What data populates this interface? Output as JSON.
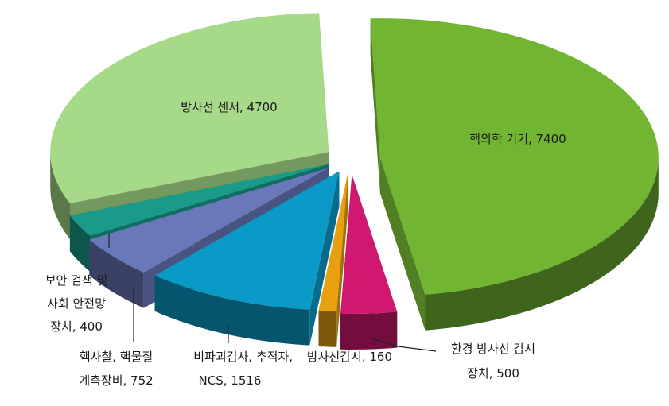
{
  "chart_data": {
    "type": "pie",
    "style": "3d-exploded",
    "legend": "none",
    "slices": [
      {
        "name": "핵의학 기기",
        "value": 7400,
        "color": "#72b533",
        "label_lines": [
          "핵의학 기기, 7400"
        ]
      },
      {
        "name": "환경 방사선 감시 장치",
        "value": 500,
        "color": "#d01870",
        "label_lines": [
          "환경 방사선 감시",
          "장치, 500"
        ]
      },
      {
        "name": "방사선감시",
        "value": 160,
        "color": "#e8a010",
        "label_lines": [
          "방사선감시, 160"
        ]
      },
      {
        "name": "비파괴검사, 추적자, NCS",
        "value": 1516,
        "color": "#0a9ac8",
        "label_lines": [
          "비파괴검사, 추적자,",
          "NCS, 1516"
        ]
      },
      {
        "name": "핵사찰, 핵물질 계측장비",
        "value": 752,
        "color": "#6878b8",
        "label_lines": [
          "핵사찰, 핵물질",
          "계측장비, 752"
        ]
      },
      {
        "name": "보안 검색 및 사회 안전망 장치",
        "value": 400,
        "color": "#1a9a88",
        "label_lines": [
          "보안 검색 및",
          "사회 안전망",
          "장치, 400"
        ]
      },
      {
        "name": "방사선 센서",
        "value": 4700,
        "color": "#a6da88",
        "label_lines": [
          "방사선 센서, 4700"
        ]
      }
    ]
  }
}
